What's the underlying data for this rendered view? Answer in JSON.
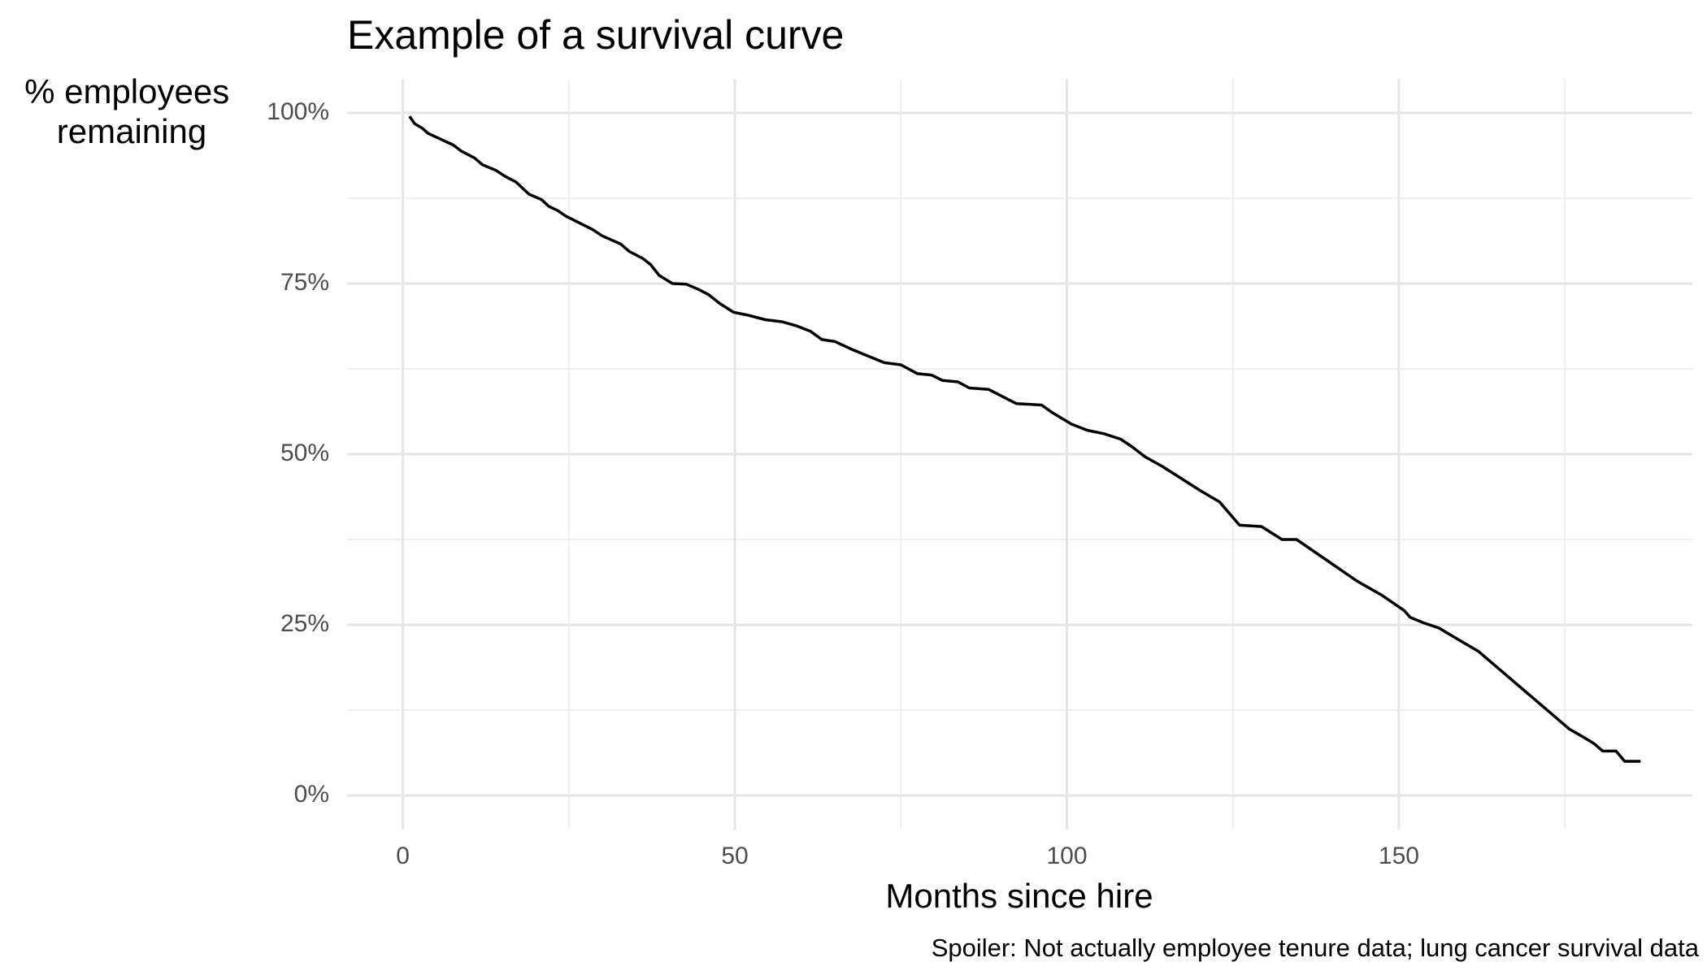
{
  "chart_data": {
    "type": "line",
    "title": "Example of a survival curve",
    "x_label": "Months since hire",
    "y_label": [
      "% employees",
      "remaining"
    ],
    "caption": "Spoiler: Not actually employee tenure data; lung cancer survival data",
    "x": [
      1,
      1.8,
      3,
      3.8,
      7.6,
      8.8,
      10.8,
      12,
      14,
      15.4,
      17,
      19,
      20.9,
      22,
      23.3,
      24.5,
      28.6,
      30,
      32.8,
      34.1,
      36.1,
      37.3,
      38.6,
      40.6,
      42.7,
      44.4,
      46,
      47.7,
      49.8,
      51.8,
      54.6,
      57.1,
      59.3,
      61.4,
      63.1,
      65.1,
      67.5,
      70,
      72.5,
      75,
      77.5,
      79.6,
      81.3,
      83.6,
      85.3,
      88.2,
      92.4,
      96.2,
      97.8,
      100.7,
      103.1,
      105.6,
      108.1,
      109.8,
      111.8,
      114.4,
      120.2,
      123,
      126,
      129.3,
      132.4,
      134.6,
      143.7,
      147.5,
      150.8,
      151.7,
      153.7,
      156.1,
      157.8,
      162,
      175.7,
      177.7,
      179.4,
      180.7,
      182.7,
      184,
      186.4
    ],
    "series": [
      {
        "color": "#000000",
        "values": [
          99.5,
          98.4,
          97.7,
          97,
          95.3,
          94.4,
          93.4,
          92.4,
          91.6,
          90.7,
          89.9,
          88.1,
          87.3,
          86.3,
          85.7,
          84.9,
          82.9,
          82,
          80.8,
          79.7,
          78.7,
          77.8,
          76.2,
          75,
          74.9,
          74.2,
          73.4,
          72.1,
          70.8,
          70.4,
          69.7,
          69.4,
          68.8,
          68,
          66.8,
          66.5,
          65.4,
          64.4,
          63.4,
          63.1,
          61.8,
          61.6,
          60.8,
          60.6,
          59.7,
          59.5,
          57.4,
          57.2,
          56.1,
          54.4,
          53.5,
          53,
          52.2,
          51.1,
          49.6,
          48.2,
          44.6,
          43,
          39.6,
          39.4,
          37.5,
          37.5,
          31.4,
          29.3,
          27.1,
          26.1,
          25.3,
          24.5,
          23.5,
          21.1,
          9.7,
          8.6,
          7.6,
          6.5,
          6.5,
          5,
          5
        ]
      }
    ],
    "xlim": [
      -8.4,
      194.2
    ],
    "ylim": [
      -5,
      105
    ],
    "xticks": [
      0,
      50,
      100,
      150
    ],
    "x_minor_ticks": [
      25,
      75,
      125,
      175
    ],
    "yticks": [
      {
        "value": 0,
        "label": "0%"
      },
      {
        "value": 25,
        "label": "25%"
      },
      {
        "value": 50,
        "label": "50%"
      },
      {
        "value": 75,
        "label": "75%"
      },
      {
        "value": 100,
        "label": "100%"
      }
    ],
    "y_minor_ticks": [
      12.5,
      37.5,
      62.5,
      87.5
    ],
    "grid": true
  }
}
